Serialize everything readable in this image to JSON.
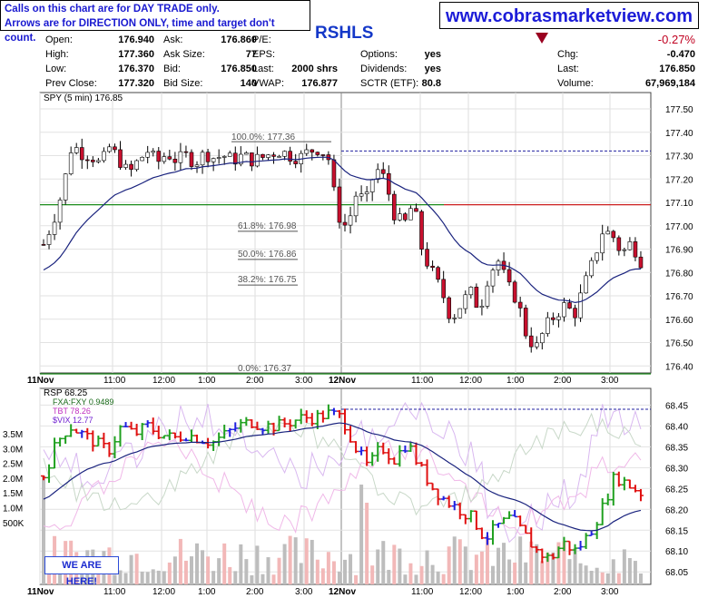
{
  "banner": {
    "line1": "Calls on this chart are for DAY TRADE only.",
    "line2": "Arrows are for DIRECTION ONLY, time and target don't count.",
    "website": "www.cobrasmarketview.com",
    "ticker": "RSHLS"
  },
  "quote": {
    "open_label": "Open:",
    "open": "176.940",
    "high_label": "High:",
    "high": "177.360",
    "low_label": "Low:",
    "low": "176.370",
    "prev_label": "Prev Close:",
    "prev": "177.320",
    "ask_label": "Ask:",
    "ask": "176.860",
    "asksize_label": "Ask Size:",
    "asksize": "77",
    "bid_label": "Bid:",
    "bid": "176.850",
    "bidsize_label": "Bid Size:",
    "bidsize": "140",
    "pe_label": "P/E:",
    "eps_label": "EPS:",
    "last_label": "Last:",
    "last_shares": "2000 shrs",
    "vwap_label": "VWAP:",
    "vwap": "176.877",
    "options_label": "Options:",
    "options": "yes",
    "dividends_label": "Dividends:",
    "dividends": "yes",
    "sctr_label": "SCTR (ETF):",
    "sctr": "80.8",
    "pct_change": "-0.27%",
    "chg_label": "Chg:",
    "chg": "-0.470",
    "last2_label": "Last:",
    "last2": "176.850",
    "volume_label": "Volume:",
    "volume": "67,969,184"
  },
  "colors": {
    "up_candle": "#ffffff",
    "down_candle": "#c8102e",
    "ma": "#1a237e",
    "fib": "#555555",
    "support": "#1a8a1a",
    "resistance": "#cc2020",
    "dashed": "#2020a0",
    "rsp_up": "#1fa01f",
    "rsp_down": "#e01010",
    "rsp_flat": "#2020e0"
  },
  "chart_data": [
    {
      "type": "candlestick",
      "legend": "SPY (5 min) 176.85",
      "ylim": [
        176.37,
        177.57
      ],
      "yticks": [
        "177.50",
        "177.40",
        "177.30",
        "177.20",
        "177.10",
        "177.00",
        "176.90",
        "176.80",
        "176.70",
        "176.60",
        "176.50",
        "176.40"
      ],
      "xticks": [
        "11Nov",
        "11:00",
        "12:00",
        "1:00",
        "2:00",
        "3:00",
        "12Nov",
        "11:00",
        "12:00",
        "1:00",
        "2:00",
        "3:00"
      ],
      "fib_levels": [
        {
          "label": "100.0%: 177.36",
          "value": 177.36
        },
        {
          "label": "61.8%: 176.98",
          "value": 176.98
        },
        {
          "label": "50.0%: 176.86",
          "value": 176.86
        },
        {
          "label": "38.2%: 176.75",
          "value": 176.75
        },
        {
          "label": "0.0%: 176.37",
          "value": 176.37
        }
      ],
      "support_line": 176.37,
      "resistance_line": 177.09,
      "green_line": 177.09,
      "dashed_line": 177.32,
      "close_path": [
        176.92,
        177.02,
        177.15,
        177.35,
        177.31,
        177.3,
        177.26,
        177.34,
        177.28,
        177.22,
        177.28,
        177.32,
        177.27,
        177.31,
        177.28,
        177.3,
        177.27,
        177.31,
        177.29,
        177.3,
        177.28,
        177.3,
        177.28,
        177.29,
        177.31,
        177.32,
        177.3,
        177.29,
        177.32,
        177.33,
        177.3,
        177.05,
        176.99,
        177.14,
        177.1,
        177.25,
        177.2,
        177.05,
        177.0,
        177.1,
        176.88,
        176.8,
        176.72,
        176.6,
        176.66,
        176.72,
        176.64,
        176.8,
        176.85,
        176.74,
        176.68,
        176.52,
        176.48,
        176.57,
        176.62,
        176.66,
        176.62,
        176.74,
        176.85,
        176.98,
        176.96,
        176.88,
        176.93,
        176.85
      ]
    },
    {
      "type": "line",
      "legend": [
        "RSP 68.25",
        "FXA:FXY 0.9489",
        "TBT 78.26",
        "$VIX 12.77"
      ],
      "ylim": [
        68.02,
        68.49
      ],
      "yticks": [
        "68.45",
        "68.40",
        "68.35",
        "68.30",
        "68.25",
        "68.20",
        "68.15",
        "68.10",
        "68.05"
      ],
      "volume_ticks": [
        "3.5M",
        "3.0M",
        "2.5M",
        "2.0M",
        "1.5M",
        "1.0M",
        "500K"
      ],
      "xticks": [
        "11Nov",
        "11:00",
        "12:00",
        "1:00",
        "2:00",
        "3:00",
        "12Nov",
        "11:00",
        "12:00",
        "1:00",
        "2:00",
        "3:00"
      ],
      "dashed_line": 68.44,
      "rsp_path": [
        68.28,
        68.36,
        68.4,
        68.38,
        68.36,
        68.34,
        68.4,
        68.38,
        68.4,
        68.38,
        68.37,
        68.38,
        68.37,
        68.36,
        68.38,
        68.4,
        68.41,
        68.4,
        68.4,
        68.41,
        68.42,
        68.42,
        68.43,
        68.42,
        68.35,
        68.3,
        68.35,
        68.32,
        68.36,
        68.3,
        68.25,
        68.22,
        68.2,
        68.18,
        68.13,
        68.16,
        68.18,
        68.14,
        68.1,
        68.08,
        68.12,
        68.1,
        68.14,
        68.2,
        68.28,
        68.26,
        68.24
      ],
      "note": "WE ARE HERE!"
    }
  ]
}
